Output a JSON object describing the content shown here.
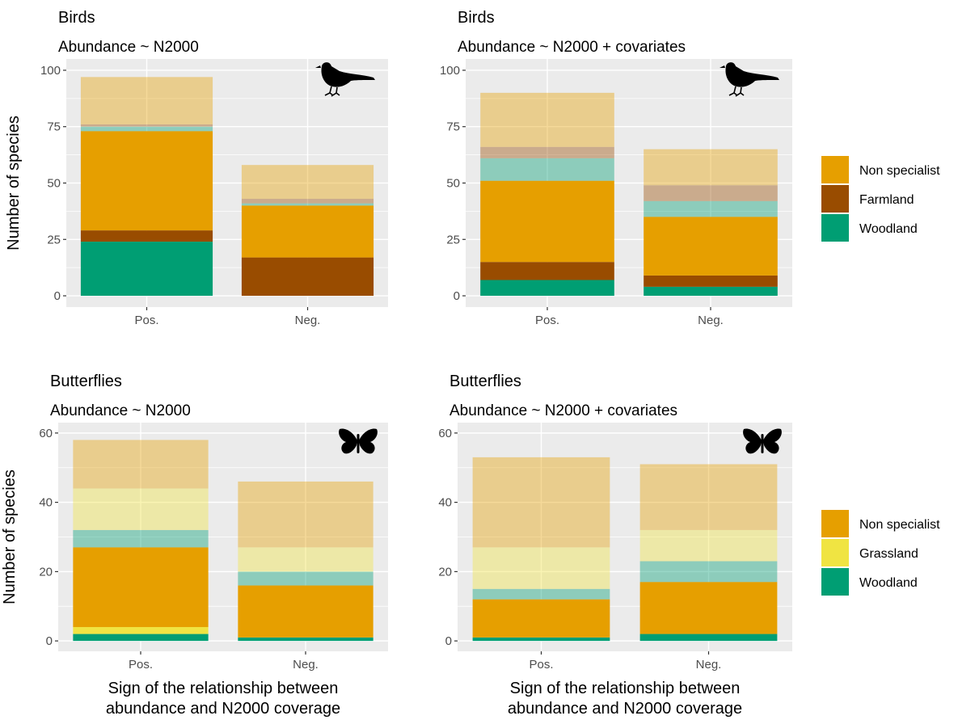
{
  "colors": {
    "Non specialist": "#E69F00",
    "Farmland": "#994C00",
    "Woodland": "#009E73",
    "Grassland": "#F0E442",
    "panel_bg": "#EBEBEB",
    "grid": "#FFFFFF"
  },
  "legends": [
    {
      "items": [
        "Non specialist",
        "Farmland",
        "Woodland"
      ]
    },
    {
      "items": [
        "Non specialist",
        "Grassland",
        "Woodland"
      ]
    }
  ],
  "icons": [
    "bird-silhouette-icon",
    "butterfly-silhouette-icon"
  ],
  "chart_data": [
    {
      "type": "bar",
      "stacked": true,
      "title": "Birds",
      "subtitle": "Abundance ~ N2000",
      "ylabel": "Number of species",
      "xlabel": "",
      "categories": [
        "Pos.",
        "Neg."
      ],
      "ylim": [
        0,
        100
      ],
      "yticks": [
        0,
        25,
        50,
        75,
        100
      ],
      "icon": "bird-silhouette-icon",
      "series": [
        {
          "name": "Woodland",
          "values": [
            24,
            0
          ],
          "opacity": 1
        },
        {
          "name": "Farmland",
          "values": [
            5,
            17
          ],
          "opacity": 1
        },
        {
          "name": "Non specialist",
          "values": [
            44,
            23
          ],
          "opacity": 1
        },
        {
          "name": "Woodland",
          "values": [
            2,
            1
          ],
          "opacity": 0.4
        },
        {
          "name": "Farmland",
          "values": [
            1,
            2
          ],
          "opacity": 0.4
        },
        {
          "name": "Non specialist",
          "values": [
            21,
            15
          ],
          "opacity": 0.4
        }
      ]
    },
    {
      "type": "bar",
      "stacked": true,
      "title": "Birds",
      "subtitle": "Abundance ~ N2000 + covariates",
      "ylabel": "",
      "xlabel": "",
      "categories": [
        "Pos.",
        "Neg."
      ],
      "ylim": [
        0,
        100
      ],
      "yticks": [
        0,
        25,
        50,
        75,
        100
      ],
      "icon": "bird-silhouette-icon",
      "series": [
        {
          "name": "Woodland",
          "values": [
            7,
            4
          ],
          "opacity": 1
        },
        {
          "name": "Farmland",
          "values": [
            8,
            5
          ],
          "opacity": 1
        },
        {
          "name": "Non specialist",
          "values": [
            36,
            26
          ],
          "opacity": 1
        },
        {
          "name": "Woodland",
          "values": [
            10,
            7
          ],
          "opacity": 0.4
        },
        {
          "name": "Farmland",
          "values": [
            5,
            7
          ],
          "opacity": 0.4
        },
        {
          "name": "Non specialist",
          "values": [
            24,
            16
          ],
          "opacity": 0.4
        }
      ]
    },
    {
      "type": "bar",
      "stacked": true,
      "title": "Butterflies",
      "subtitle": "Abundance ~ N2000",
      "ylabel": "Number of species",
      "xlabel": "Sign of the relationship between\nabundance and N2000 coverage",
      "categories": [
        "Pos.",
        "Neg."
      ],
      "ylim": [
        0,
        60
      ],
      "yticks": [
        0,
        20,
        40,
        60
      ],
      "icon": "butterfly-silhouette-icon",
      "series": [
        {
          "name": "Woodland",
          "values": [
            2,
            1
          ],
          "opacity": 1
        },
        {
          "name": "Grassland",
          "values": [
            2,
            0
          ],
          "opacity": 1
        },
        {
          "name": "Non specialist",
          "values": [
            23,
            15
          ],
          "opacity": 1
        },
        {
          "name": "Woodland",
          "values": [
            5,
            4
          ],
          "opacity": 0.4
        },
        {
          "name": "Grassland",
          "values": [
            12,
            7
          ],
          "opacity": 0.4
        },
        {
          "name": "Non specialist",
          "values": [
            14,
            19
          ],
          "opacity": 0.4
        }
      ]
    },
    {
      "type": "bar",
      "stacked": true,
      "title": "Butterflies",
      "subtitle": "Abundance ~ N2000 + covariates",
      "ylabel": "",
      "xlabel": "Sign of the relationship between\nabundance and N2000 coverage",
      "categories": [
        "Pos.",
        "Neg."
      ],
      "ylim": [
        0,
        60
      ],
      "yticks": [
        0,
        20,
        40,
        60
      ],
      "icon": "butterfly-silhouette-icon",
      "series": [
        {
          "name": "Woodland",
          "values": [
            1,
            2
          ],
          "opacity": 1
        },
        {
          "name": "Grassland",
          "values": [
            0,
            0
          ],
          "opacity": 1
        },
        {
          "name": "Non specialist",
          "values": [
            11,
            15
          ],
          "opacity": 1
        },
        {
          "name": "Woodland",
          "values": [
            3,
            6
          ],
          "opacity": 0.4
        },
        {
          "name": "Grassland",
          "values": [
            12,
            9
          ],
          "opacity": 0.4
        },
        {
          "name": "Non specialist",
          "values": [
            26,
            19
          ],
          "opacity": 0.4
        }
      ]
    }
  ]
}
